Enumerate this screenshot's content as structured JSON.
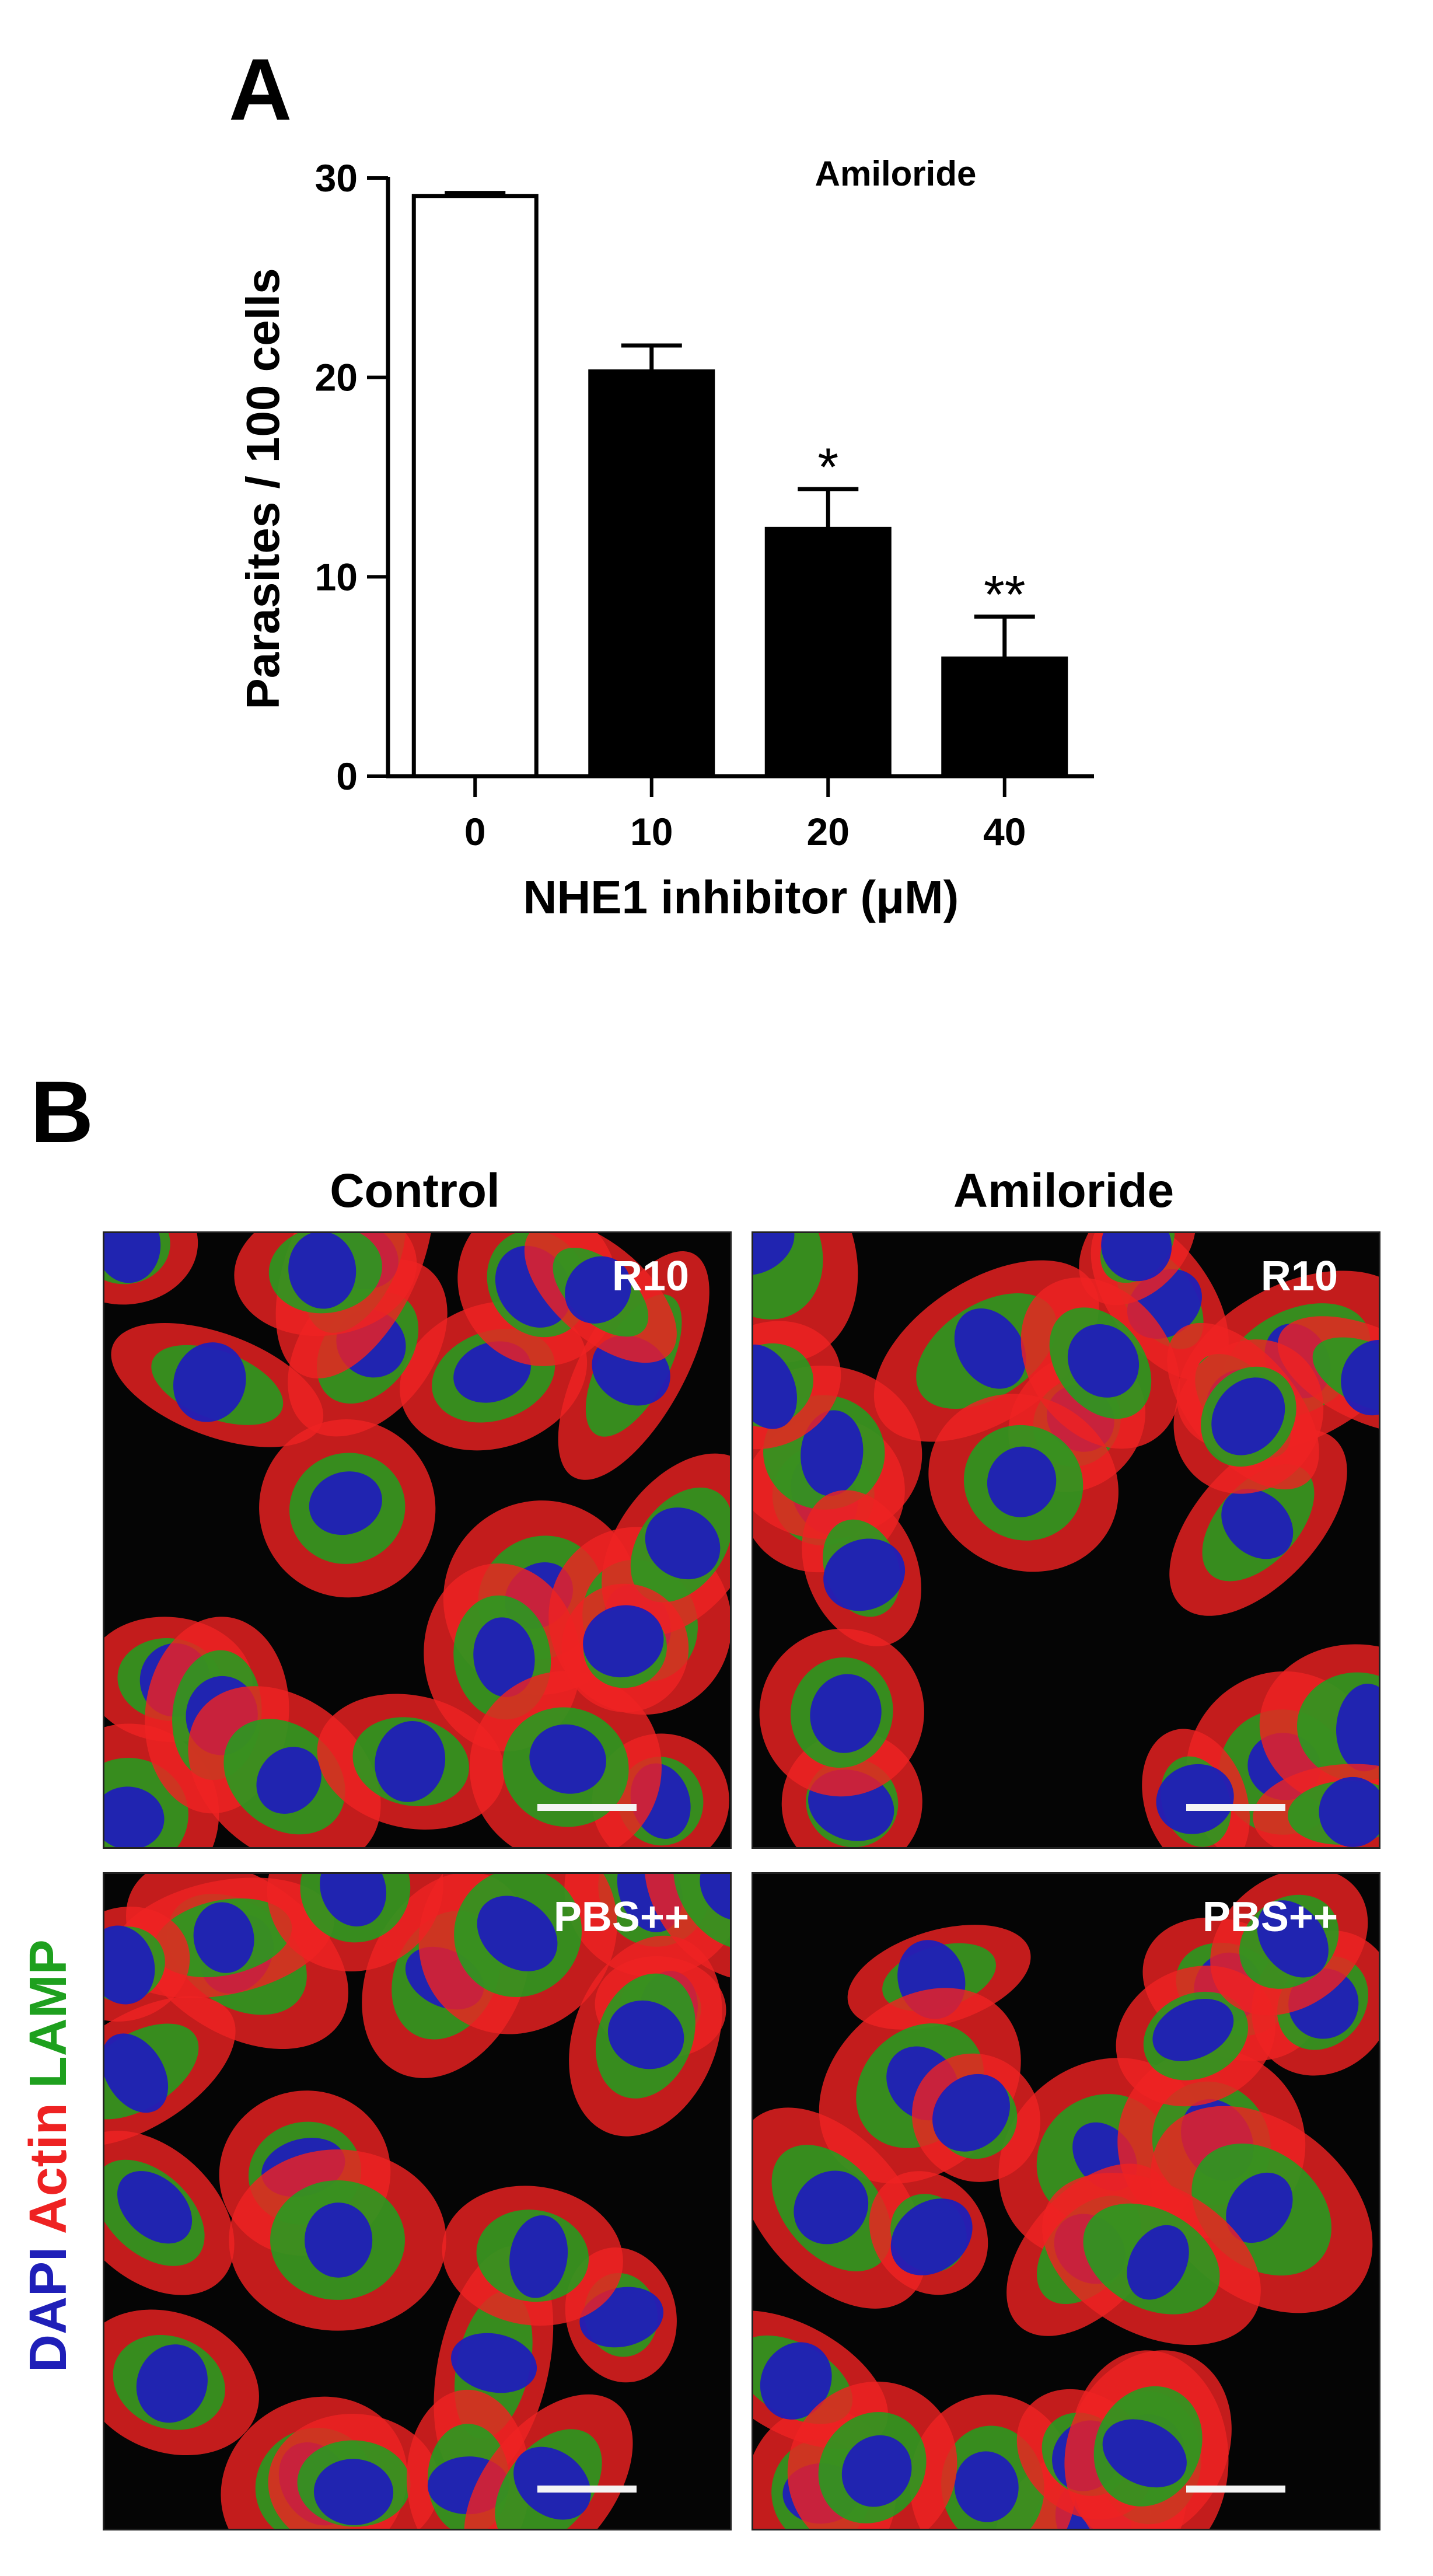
{
  "panel_a": {
    "letter": "A"
  },
  "panel_b": {
    "letter": "B",
    "columns": [
      "Control",
      "Amiloride"
    ],
    "stain_label": {
      "dapi": "DAPI",
      "actin": "Actin",
      "lamp": "LAMP"
    },
    "stain_colors": {
      "dapi": "#1f1fb8",
      "actin": "#ee2222",
      "lamp": "#1ea01e"
    },
    "rows": [
      "R10",
      "PBS++"
    ]
  },
  "chart_data": {
    "type": "bar",
    "title": "Amiloride",
    "xlabel": "NHE1 inhibitor (μM)",
    "ylabel": "Parasites / 100 cells",
    "categories": [
      "0",
      "10",
      "20",
      "40"
    ],
    "values": [
      29.1,
      20.3,
      12.4,
      5.9
    ],
    "errors": [
      0.15,
      1.3,
      2.0,
      2.1
    ],
    "significance": [
      "",
      "",
      "*",
      "**"
    ],
    "bar_fills": [
      "#ffffff",
      "#000000",
      "#000000",
      "#000000"
    ],
    "ylim": [
      0,
      30
    ],
    "yticks": [
      0,
      10,
      20,
      30
    ],
    "grid": false
  }
}
